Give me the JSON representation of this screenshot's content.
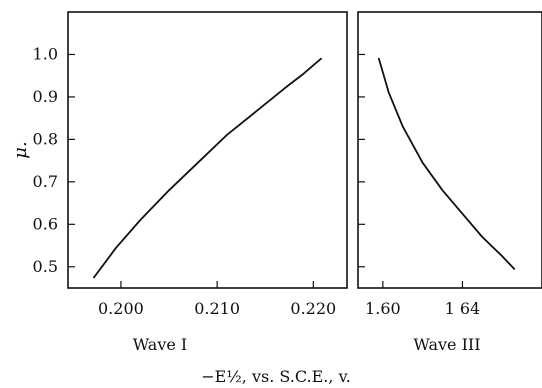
{
  "chart_data": {
    "type": "line",
    "ylabel": "μ.",
    "xlabel": "−E½, vs. S.C.E., v.",
    "ylim": [
      0.45,
      1.1
    ],
    "y_ticks": [
      "0.5",
      "0.6",
      "0.7",
      "0.8",
      "0.9",
      "1.0"
    ],
    "grid": false,
    "panels": [
      {
        "title": "Wave I",
        "xlim": [
          0.1945,
          0.2235
        ],
        "x_ticks": [
          0.2,
          0.21,
          0.22
        ],
        "x_tick_labels": [
          "0.200",
          "0.210",
          "0.220"
        ],
        "series": [
          {
            "x": [
              0.1972,
              0.1995,
              0.202,
              0.205,
              0.208,
              0.211,
              0.214,
              0.217,
              0.219,
              0.2208
            ],
            "y": [
              0.475,
              0.545,
              0.61,
              0.68,
              0.745,
              0.81,
              0.865,
              0.92,
              0.955,
              0.99
            ]
          }
        ]
      },
      {
        "title": "Wave III",
        "xlim": [
          1.5875,
          1.68
        ],
        "x_ticks": [
          1.6,
          1.64
        ],
        "x_tick_labels": [
          "1.60",
          "1 64"
        ],
        "series": [
          {
            "x": [
              1.598,
              1.603,
              1.61,
              1.62,
              1.63,
              1.64,
              1.65,
              1.66,
              1.666
            ],
            "y": [
              0.99,
              0.91,
              0.83,
              0.745,
              0.68,
              0.625,
              0.57,
              0.525,
              0.495
            ]
          }
        ]
      }
    ]
  }
}
